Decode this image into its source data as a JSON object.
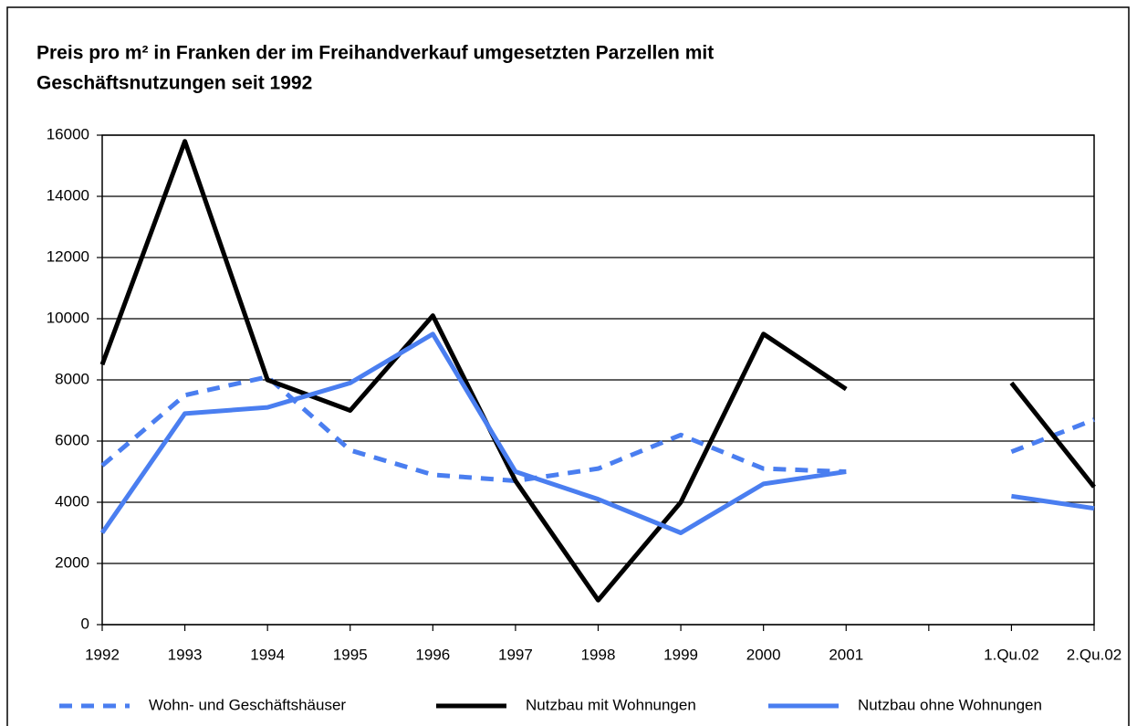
{
  "chart_data": {
    "type": "line",
    "title_lines": [
      "Preis pro m² in Franken der im Freihandverkauf umgesetzten Parzellen mit",
      "Geschäftsnutzungen seit 1992"
    ],
    "categories": [
      "1992",
      "1993",
      "1994",
      "1995",
      "1996",
      "1997",
      "1998",
      "1999",
      "2000",
      "2001",
      null,
      "1.Qu.02",
      "2.Qu.02"
    ],
    "series": [
      {
        "name": "Wohn- und Geschäftshäuser",
        "color": "#4a7ef0",
        "dashed": true,
        "values": [
          5200,
          7500,
          8100,
          5700,
          4900,
          4700,
          5100,
          6200,
          5100,
          5000,
          null,
          5650,
          6700
        ]
      },
      {
        "name": "Nutzbau mit Wohnungen",
        "color": "#000000",
        "dashed": false,
        "values": [
          8500,
          15800,
          8000,
          7000,
          10100,
          4700,
          800,
          4000,
          9500,
          7700,
          null,
          7900,
          4500
        ]
      },
      {
        "name": "Nutzbau ohne Wohnungen",
        "color": "#4a7ef0",
        "dashed": false,
        "values": [
          3000,
          6900,
          7100,
          7900,
          9500,
          5000,
          4100,
          3000,
          4600,
          5000,
          null,
          4200,
          3800
        ]
      }
    ],
    "ylim": [
      0,
      16000
    ],
    "yticks": [
      0,
      2000,
      4000,
      6000,
      8000,
      10000,
      12000,
      14000,
      16000
    ],
    "grid": true,
    "legend": "bottom"
  }
}
